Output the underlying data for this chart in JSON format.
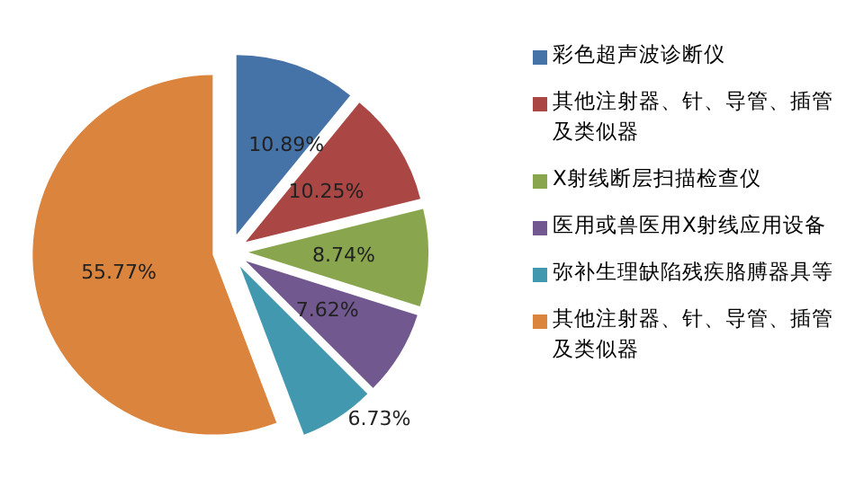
{
  "chart_data": {
    "type": "pie",
    "categories": [
      "彩色超声波诊断仪",
      "其他注射器、针、导管、插管及类似器",
      "X射线断层扫描检查仪",
      "医用或兽医用X射线应用设备",
      "弥补生理缺陷残疾胳膊器具等",
      "其他注射器、针、导管、插管及类似器"
    ],
    "values": [
      10.89,
      10.25,
      8.74,
      7.62,
      6.73,
      55.77
    ],
    "value_labels": [
      "10.89%",
      "10.25%",
      "8.74%",
      "7.62%",
      "6.73%",
      "55.77%"
    ],
    "colors": [
      "#4572a7",
      "#aa4643",
      "#89a54e",
      "#71588f",
      "#4198af",
      "#db843d"
    ],
    "legend": "right"
  }
}
